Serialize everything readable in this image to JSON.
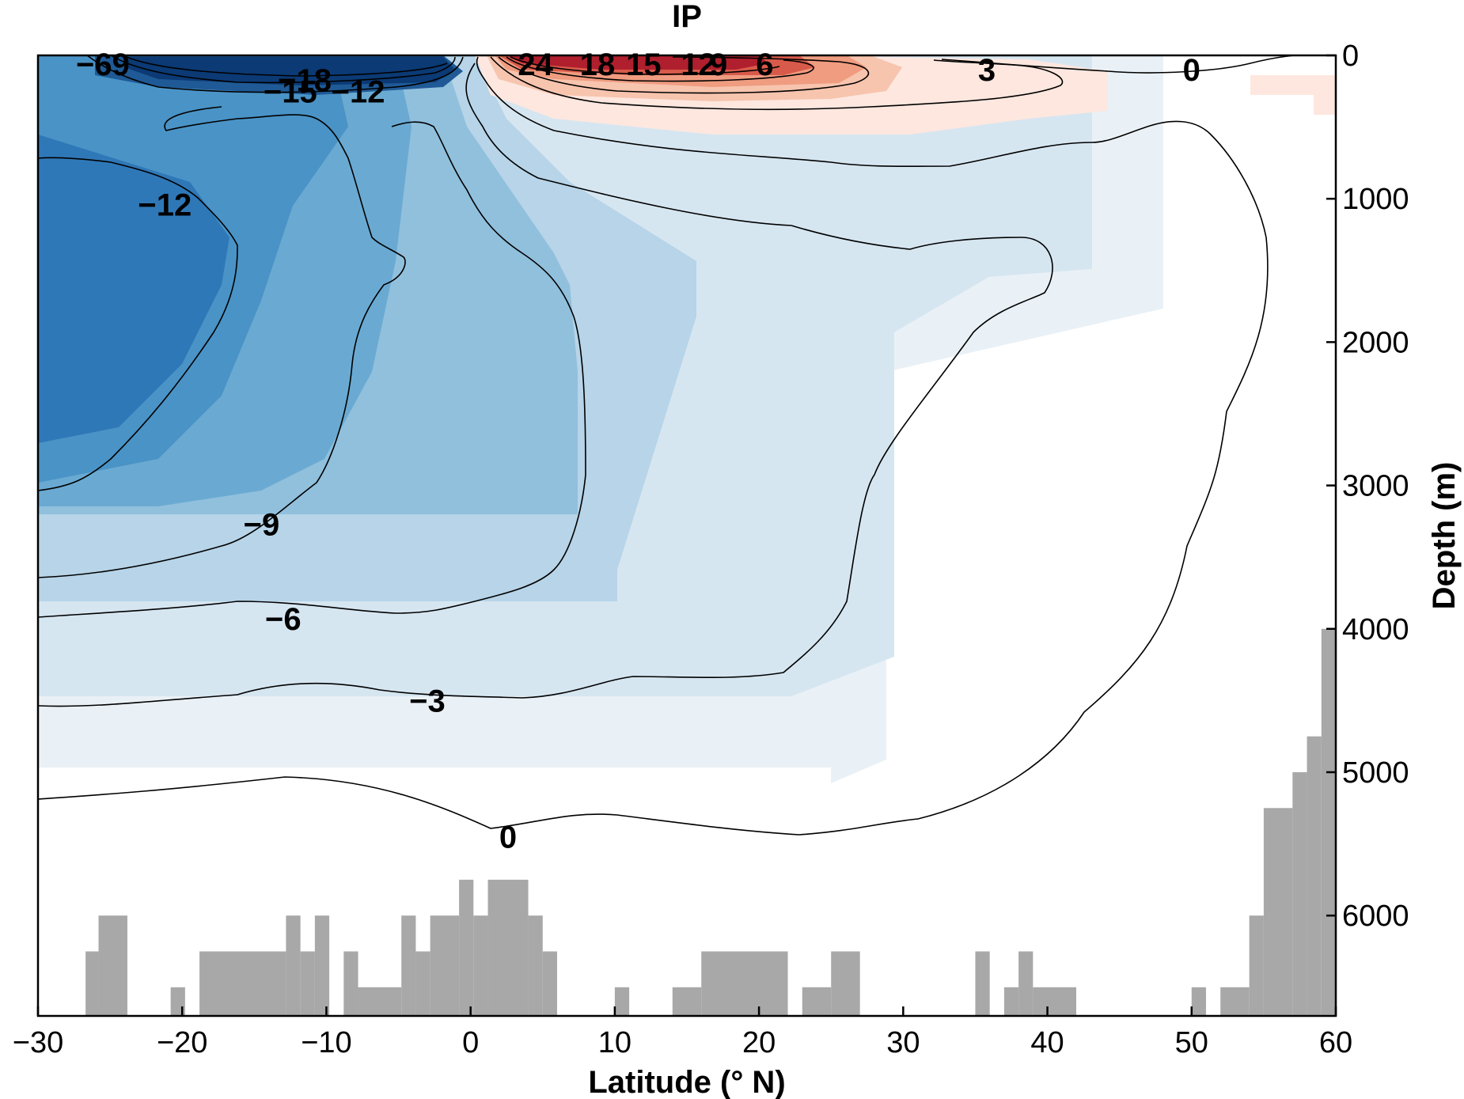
{
  "chart_data": {
    "type": "heatmap",
    "title": "IP",
    "xlabel": "Latitude (° N)",
    "ylabel": "Depth (m)",
    "xlim": [
      -30,
      60
    ],
    "ylim": [
      0,
      6700
    ],
    "y_inverted": true,
    "y_axis_side": "right",
    "xticks": [
      -30,
      -20,
      -10,
      0,
      10,
      20,
      30,
      40,
      50,
      60
    ],
    "xtick_labels": [
      "−30",
      "−20",
      "−10",
      "0",
      "10",
      "20",
      "30",
      "40",
      "50",
      "60"
    ],
    "yticks": [
      0,
      1000,
      2000,
      3000,
      4000,
      5000,
      6000
    ],
    "ytick_labels": [
      "0",
      "1000",
      "2000",
      "3000",
      "4000",
      "5000",
      "6000"
    ],
    "colormap": "diverging blue-white-red",
    "colors": {
      "negative_strong": "#08306b",
      "negative_mid": "#2b73b6",
      "negative_weak": "#c6dcec",
      "neutral": "#ffffff",
      "positive_weak": "#fbdcd0",
      "positive_strong": "#b5202e",
      "bathymetry": "#a8a8a8"
    },
    "contour_levels": [
      -24,
      -21,
      -18,
      -15,
      -12,
      -9,
      -6,
      -3,
      0,
      3,
      6,
      9,
      12,
      15,
      18,
      21,
      24
    ],
    "contour_labels": [
      {
        "text": "−69",
        "lat": -25.5,
        "depth": 60
      },
      {
        "text": "−18",
        "lat": -11.5,
        "depth": 170
      },
      {
        "text": "−15",
        "lat": -12.5,
        "depth": 250
      },
      {
        "text": "−12",
        "lat": -7.8,
        "depth": 250
      },
      {
        "text": "−12",
        "lat": -21.2,
        "depth": 1040
      },
      {
        "text": "−9",
        "lat": -14.5,
        "depth": 3270
      },
      {
        "text": "−6",
        "lat": -13.0,
        "depth": 3930
      },
      {
        "text": "−3",
        "lat": -3.0,
        "depth": 4500
      },
      {
        "text": "0",
        "lat": 2.6,
        "depth": 5450
      },
      {
        "text": "24",
        "lat": 4.5,
        "depth": 60
      },
      {
        "text": "18",
        "lat": 8.8,
        "depth": 60
      },
      {
        "text": "15",
        "lat": 12.0,
        "depth": 60
      },
      {
        "text": "12",
        "lat": 15.8,
        "depth": 60
      },
      {
        "text": "9",
        "lat": 17.2,
        "depth": 60
      },
      {
        "text": "6",
        "lat": 20.4,
        "depth": 60
      },
      {
        "text": "3",
        "lat": 35.8,
        "depth": 100
      },
      {
        "text": "0",
        "lat": 50.0,
        "depth": 100
      }
    ],
    "bathymetry_depth_by_lat": [
      {
        "lat0": -30,
        "lat1": -26.7,
        "depth": 6700
      },
      {
        "lat0": -26.7,
        "lat1": -25.8,
        "depth": 6250
      },
      {
        "lat0": -25.8,
        "lat1": -23.8,
        "depth": 6000
      },
      {
        "lat0": -23.8,
        "lat1": -20.8,
        "depth": 6700
      },
      {
        "lat0": -20.8,
        "lat1": -19.8,
        "depth": 6500
      },
      {
        "lat0": -19.8,
        "lat1": -18.8,
        "depth": 6700
      },
      {
        "lat0": -18.8,
        "lat1": -12.8,
        "depth": 6250
      },
      {
        "lat0": -12.8,
        "lat1": -11.8,
        "depth": 6000
      },
      {
        "lat0": -11.8,
        "lat1": -10.8,
        "depth": 6250
      },
      {
        "lat0": -10.8,
        "lat1": -9.8,
        "depth": 6000
      },
      {
        "lat0": -9.8,
        "lat1": -8.8,
        "depth": 6700
      },
      {
        "lat0": -8.8,
        "lat1": -7.8,
        "depth": 6250
      },
      {
        "lat0": -7.8,
        "lat1": -4.8,
        "depth": 6500
      },
      {
        "lat0": -4.8,
        "lat1": -3.8,
        "depth": 6000
      },
      {
        "lat0": -3.8,
        "lat1": -2.8,
        "depth": 6250
      },
      {
        "lat0": -2.8,
        "lat1": -0.8,
        "depth": 6000
      },
      {
        "lat0": -0.8,
        "lat1": 0.2,
        "depth": 5750
      },
      {
        "lat0": 0.2,
        "lat1": 1.2,
        "depth": 6000
      },
      {
        "lat0": 1.2,
        "lat1": 4.0,
        "depth": 5750
      },
      {
        "lat0": 4.0,
        "lat1": 5.0,
        "depth": 6000
      },
      {
        "lat0": 5.0,
        "lat1": 6.0,
        "depth": 6250
      },
      {
        "lat0": 6.0,
        "lat1": 10.0,
        "depth": 6700
      },
      {
        "lat0": 10.0,
        "lat1": 11.0,
        "depth": 6500
      },
      {
        "lat0": 11.0,
        "lat1": 14.0,
        "depth": 6700
      },
      {
        "lat0": 14.0,
        "lat1": 16.0,
        "depth": 6500
      },
      {
        "lat0": 16.0,
        "lat1": 22.0,
        "depth": 6250
      },
      {
        "lat0": 22.0,
        "lat1": 23.0,
        "depth": 6700
      },
      {
        "lat0": 23.0,
        "lat1": 25.0,
        "depth": 6500
      },
      {
        "lat0": 25.0,
        "lat1": 27.0,
        "depth": 6250
      },
      {
        "lat0": 27.0,
        "lat1": 35.0,
        "depth": 6700
      },
      {
        "lat0": 35.0,
        "lat1": 36.0,
        "depth": 6250
      },
      {
        "lat0": 36.0,
        "lat1": 37.0,
        "depth": 6700
      },
      {
        "lat0": 37.0,
        "lat1": 38.0,
        "depth": 6500
      },
      {
        "lat0": 38.0,
        "lat1": 39.0,
        "depth": 6250
      },
      {
        "lat0": 39.0,
        "lat1": 42.0,
        "depth": 6500
      },
      {
        "lat0": 42.0,
        "lat1": 50.0,
        "depth": 6700
      },
      {
        "lat0": 50.0,
        "lat1": 51.0,
        "depth": 6500
      },
      {
        "lat0": 51.0,
        "lat1": 52.0,
        "depth": 6700
      },
      {
        "lat0": 52.0,
        "lat1": 54.0,
        "depth": 6500
      },
      {
        "lat0": 54.0,
        "lat1": 55.0,
        "depth": 6000
      },
      {
        "lat0": 55.0,
        "lat1": 57.0,
        "depth": 5250
      },
      {
        "lat0": 57.0,
        "lat1": 58.0,
        "depth": 5000
      },
      {
        "lat0": 58.0,
        "lat1": 59.0,
        "depth": 4750
      },
      {
        "lat0": 59.0,
        "lat1": 60.0,
        "depth": 4000
      }
    ]
  }
}
